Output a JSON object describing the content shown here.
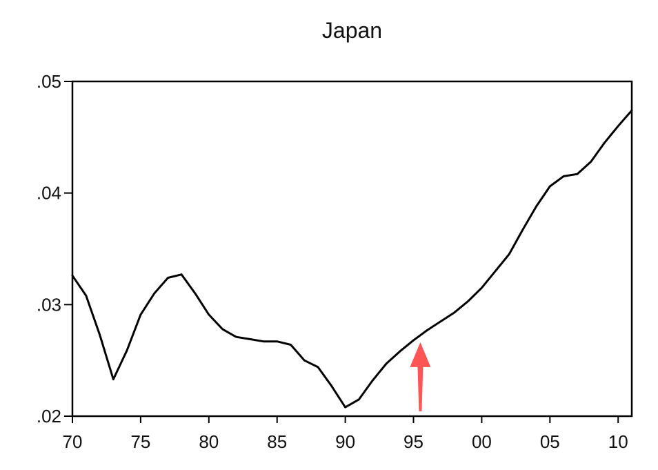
{
  "chart_data": {
    "type": "line",
    "title": "Japan",
    "xlabel": "",
    "ylabel": "",
    "x": [
      1970,
      1971,
      1972,
      1973,
      1974,
      1975,
      1976,
      1977,
      1978,
      1979,
      1980,
      1981,
      1982,
      1983,
      1984,
      1985,
      1986,
      1987,
      1988,
      1989,
      1990,
      1991,
      1992,
      1993,
      1994,
      1995,
      1996,
      1997,
      1998,
      1999,
      2000,
      2001,
      2002,
      2003,
      2004,
      2005,
      2006,
      2007,
      2008,
      2009,
      2010,
      2011
    ],
    "series": [
      {
        "values": [
          0.0326,
          0.0308,
          0.0273,
          0.0233,
          0.0259,
          0.0291,
          0.031,
          0.0324,
          0.0327,
          0.031,
          0.0291,
          0.0278,
          0.0271,
          0.0269,
          0.0267,
          0.0267,
          0.0264,
          0.025,
          0.0244,
          0.0227,
          0.0208,
          0.0215,
          0.0232,
          0.0247,
          0.0258,
          0.0268,
          0.0277,
          0.0285,
          0.0293,
          0.0303,
          0.0315,
          0.033,
          0.0345,
          0.0367,
          0.0388,
          0.0406,
          0.0415,
          0.0417,
          0.0428,
          0.0445,
          0.046,
          0.0474
        ],
        "color": "#000000"
      }
    ],
    "xlim": [
      1970,
      2011
    ],
    "ylim": [
      0.02,
      0.05
    ],
    "x_ticks": [
      1970,
      1975,
      1980,
      1985,
      1990,
      1995,
      2000,
      2005,
      2010
    ],
    "x_tick_labels": [
      "70",
      "75",
      "80",
      "85",
      "90",
      "95",
      "00",
      "05",
      "10"
    ],
    "y_ticks": [
      0.02,
      0.03,
      0.04,
      0.05
    ],
    "y_tick_labels": [
      ".02",
      ".03",
      ".04",
      ".05"
    ],
    "grid": false,
    "annotations": [
      {
        "type": "arrow",
        "color": "#ff5555",
        "points_to_x": 1995.5,
        "points_to_y": 0.027
      }
    ]
  }
}
